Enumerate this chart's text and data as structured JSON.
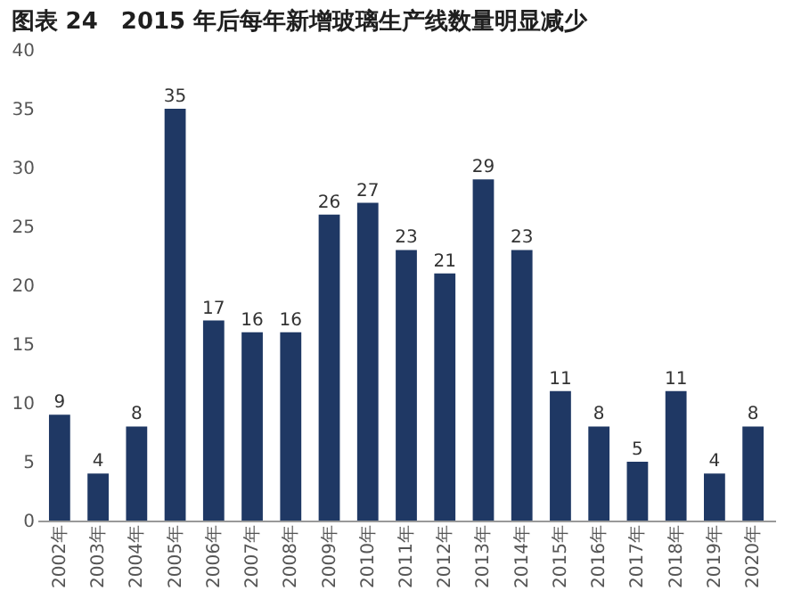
{
  "chart_data": {
    "type": "bar",
    "title": "图表 24　2015 年后每年新增玻璃生产线数量明显减少",
    "categories": [
      "2002年",
      "2003年",
      "2004年",
      "2005年",
      "2006年",
      "2007年",
      "2008年",
      "2009年",
      "2010年",
      "2011年",
      "2012年",
      "2013年",
      "2014年",
      "2015年",
      "2016年",
      "2017年",
      "2018年",
      "2019年",
      "2020年"
    ],
    "values": [
      9,
      4,
      8,
      35,
      17,
      16,
      16,
      26,
      27,
      23,
      21,
      29,
      23,
      11,
      8,
      5,
      11,
      4,
      8
    ],
    "color": "#1f3864",
    "ylim": [
      0,
      40
    ],
    "yticks": [
      0,
      5,
      10,
      15,
      20,
      25,
      30,
      35,
      40
    ],
    "grid": false,
    "data_labels": true
  }
}
